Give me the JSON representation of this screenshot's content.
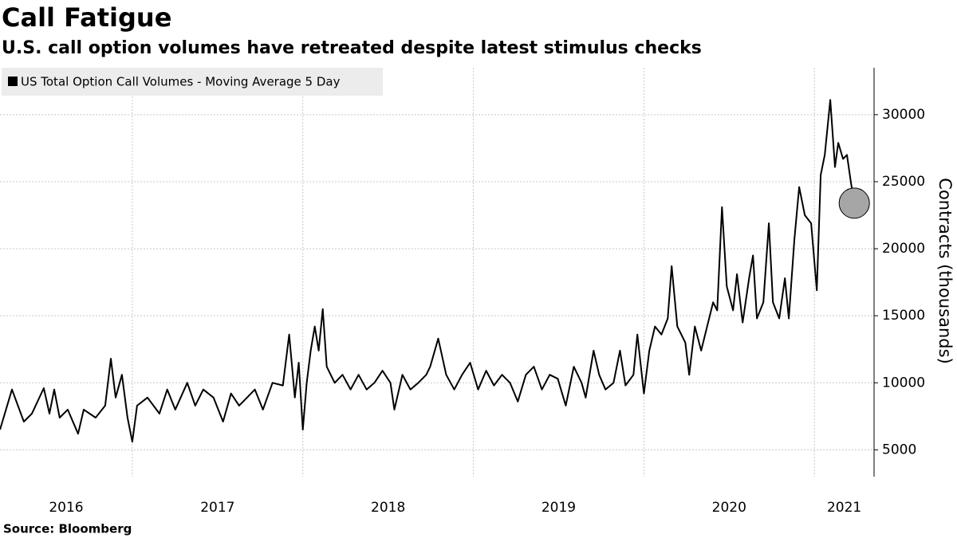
{
  "chart_data": {
    "type": "line",
    "title": "Call Fatigue",
    "subtitle": "U.S. call option volumes have retreated despite latest stimulus checks",
    "y_label": "Contracts (thousands)",
    "source": "Source: Bloomberg",
    "x": [
      2016.224,
      2016.294,
      2016.364,
      2016.411,
      2016.481,
      2016.514,
      2016.542,
      2016.574,
      2016.621,
      2016.682,
      2016.715,
      2016.785,
      2016.841,
      2016.874,
      2016.902,
      2016.939,
      2016.972,
      2017.0,
      2017.028,
      2017.089,
      2017.159,
      2017.205,
      2017.252,
      2017.322,
      2017.369,
      2017.416,
      2017.476,
      2017.532,
      2017.579,
      2017.626,
      2017.673,
      2017.719,
      2017.766,
      2017.822,
      2017.883,
      2017.92,
      2017.953,
      2017.976,
      2018.0,
      2018.023,
      2018.046,
      2018.07,
      2018.093,
      2018.117,
      2018.14,
      2018.187,
      2018.233,
      2018.28,
      2018.327,
      2018.374,
      2018.42,
      2018.467,
      2018.514,
      2018.537,
      2018.584,
      2018.631,
      2018.677,
      2018.724,
      2018.747,
      2018.794,
      2018.841,
      2018.888,
      2018.934,
      2018.981,
      2019.028,
      2019.075,
      2019.121,
      2019.168,
      2019.215,
      2019.261,
      2019.308,
      2019.355,
      2019.402,
      2019.448,
      2019.495,
      2019.542,
      2019.589,
      2019.635,
      2019.659,
      2019.705,
      2019.738,
      2019.775,
      2019.822,
      2019.86,
      2019.892,
      2019.939,
      2019.962,
      2020.0,
      2020.032,
      2020.065,
      2020.103,
      2020.14,
      2020.163,
      2020.196,
      2020.243,
      2020.266,
      2020.299,
      2020.336,
      2020.383,
      2020.406,
      2020.43,
      2020.458,
      2020.486,
      2020.523,
      2020.546,
      2020.579,
      2020.617,
      2020.64,
      2020.663,
      2020.701,
      2020.733,
      2020.757,
      2020.794,
      2020.827,
      2020.85,
      2020.883,
      2020.911,
      2020.944,
      2020.981,
      2021.014,
      2021.037,
      2021.061,
      2021.093,
      2021.121,
      2021.14,
      2021.168,
      2021.191,
      2021.215,
      2021.234
    ],
    "series": [
      {
        "name": "US Total Option Call Volumes - Moving Average 5 Day",
        "color": "#000000",
        "values": [
          6500,
          9500,
          7100,
          7700,
          9600,
          7700,
          9500,
          7400,
          8000,
          6200,
          8000,
          7400,
          8300,
          11800,
          8900,
          10600,
          7400,
          5600,
          8300,
          8900,
          7700,
          9500,
          8000,
          10000,
          8300,
          9500,
          8900,
          7100,
          9200,
          8300,
          8900,
          9500,
          8000,
          10000,
          9800,
          13600,
          8900,
          11500,
          6500,
          10000,
          12400,
          14200,
          12400,
          15500,
          11200,
          10000,
          10600,
          9500,
          10600,
          9500,
          10000,
          10900,
          10000,
          8000,
          10600,
          9500,
          10000,
          10600,
          11200,
          13300,
          10600,
          9500,
          10600,
          11500,
          9500,
          10900,
          9800,
          10600,
          10000,
          8600,
          10600,
          11200,
          9500,
          10600,
          10300,
          8300,
          11200,
          10000,
          8900,
          12400,
          10600,
          9500,
          10000,
          12400,
          9800,
          10600,
          13600,
          9200,
          12400,
          14200,
          13600,
          14800,
          18700,
          14200,
          13000,
          10600,
          14200,
          12400,
          14800,
          16000,
          15400,
          23100,
          17200,
          15400,
          18100,
          14500,
          17800,
          19500,
          14800,
          16000,
          21900,
          16000,
          14800,
          17800,
          14800,
          20700,
          24600,
          22500,
          21900,
          16900,
          25500,
          27000,
          31100,
          26100,
          27900,
          26700,
          27000,
          24900,
          23400
        ]
      }
    ],
    "end_marker": {
      "color": "#a6a6a6"
    },
    "xlim": [
      2016.224,
      2021.35
    ],
    "xticks": [
      {
        "value": 2016,
        "label": "2016"
      },
      {
        "value": 2017,
        "label": "2017"
      },
      {
        "value": 2018,
        "label": "2018"
      },
      {
        "value": 2019,
        "label": "2019"
      },
      {
        "value": 2020,
        "label": "2020"
      },
      {
        "value": 2021,
        "label": "2021"
      }
    ],
    "ylim": [
      3000,
      33500
    ],
    "yticks": [
      5000,
      10000,
      15000,
      20000,
      25000,
      30000
    ],
    "grid": true,
    "legend": "top-left"
  }
}
